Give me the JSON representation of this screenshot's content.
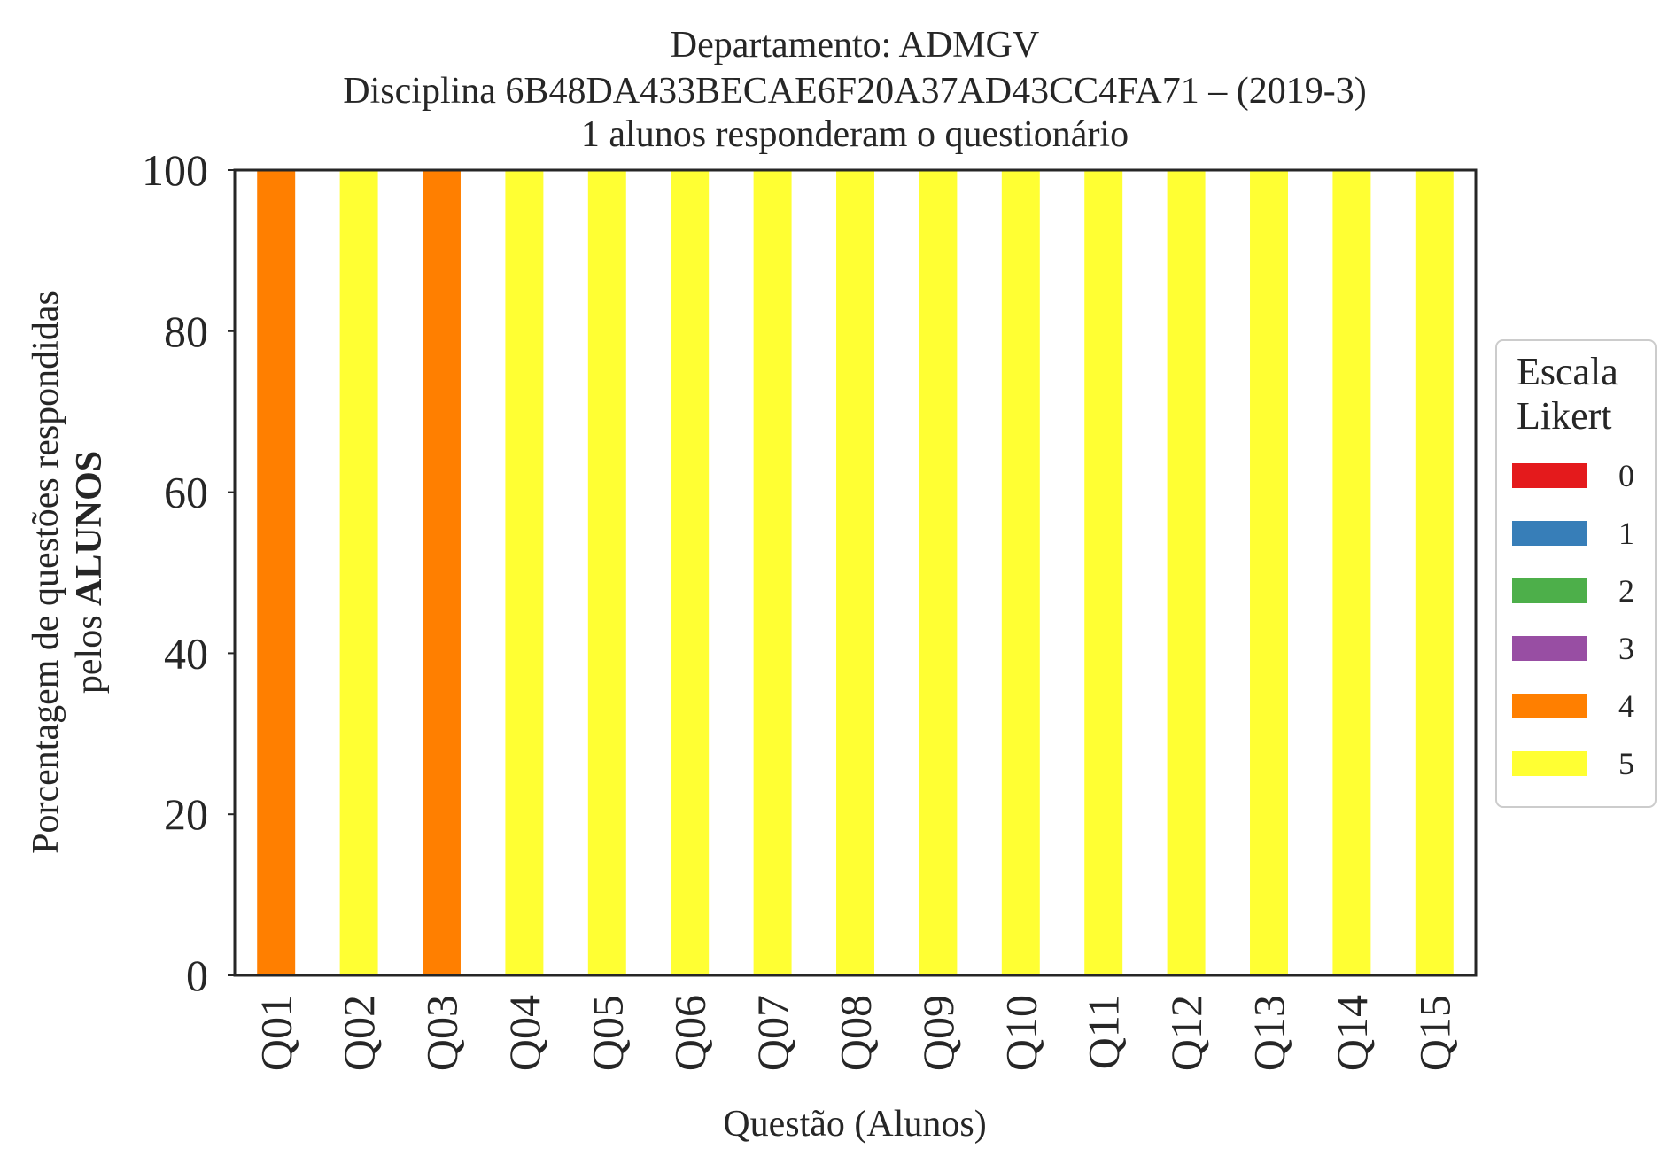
{
  "chart_data": {
    "type": "bar",
    "stacked": true,
    "title_lines": [
      "Departamento: ADMGV",
      "Disciplina 6B48DA433BECAE6F20A37AD43CC4FA71 – (2019-3)",
      "1 alunos responderam o questionário"
    ],
    "xlabel": "Questão (Alunos)",
    "ylabel_line1": "Porcentagem de questões respondidas",
    "ylabel_line2_prefix": "pelos ",
    "ylabel_line2_bold": "ALUNOS",
    "ylim": [
      0,
      100
    ],
    "yticks": [
      "0",
      "20",
      "40",
      "60",
      "80",
      "100"
    ],
    "categories": [
      "Q01",
      "Q02",
      "Q03",
      "Q04",
      "Q05",
      "Q06",
      "Q07",
      "Q08",
      "Q09",
      "Q10",
      "Q11",
      "Q12",
      "Q13",
      "Q14",
      "Q15"
    ],
    "series": [
      {
        "name": "0",
        "color": "#e41a1c",
        "values": [
          0,
          0,
          0,
          0,
          0,
          0,
          0,
          0,
          0,
          0,
          0,
          0,
          0,
          0,
          0
        ]
      },
      {
        "name": "1",
        "color": "#377eb8",
        "values": [
          0,
          0,
          0,
          0,
          0,
          0,
          0,
          0,
          0,
          0,
          0,
          0,
          0,
          0,
          0
        ]
      },
      {
        "name": "2",
        "color": "#4daf4a",
        "values": [
          0,
          0,
          0,
          0,
          0,
          0,
          0,
          0,
          0,
          0,
          0,
          0,
          0,
          0,
          0
        ]
      },
      {
        "name": "3",
        "color": "#984ea3",
        "values": [
          0,
          0,
          0,
          0,
          0,
          0,
          0,
          0,
          0,
          0,
          0,
          0,
          0,
          0,
          0
        ]
      },
      {
        "name": "4",
        "color": "#ff7f00",
        "values": [
          100,
          0,
          100,
          0,
          0,
          0,
          0,
          0,
          0,
          0,
          0,
          0,
          0,
          0,
          0
        ]
      },
      {
        "name": "5",
        "color": "#ffff33",
        "values": [
          0,
          100,
          0,
          100,
          100,
          100,
          100,
          100,
          100,
          100,
          100,
          100,
          100,
          100,
          100
        ]
      }
    ],
    "legend": {
      "title_line1": "Escala",
      "title_line2": "Likert",
      "placement": "right"
    },
    "grid": false
  }
}
